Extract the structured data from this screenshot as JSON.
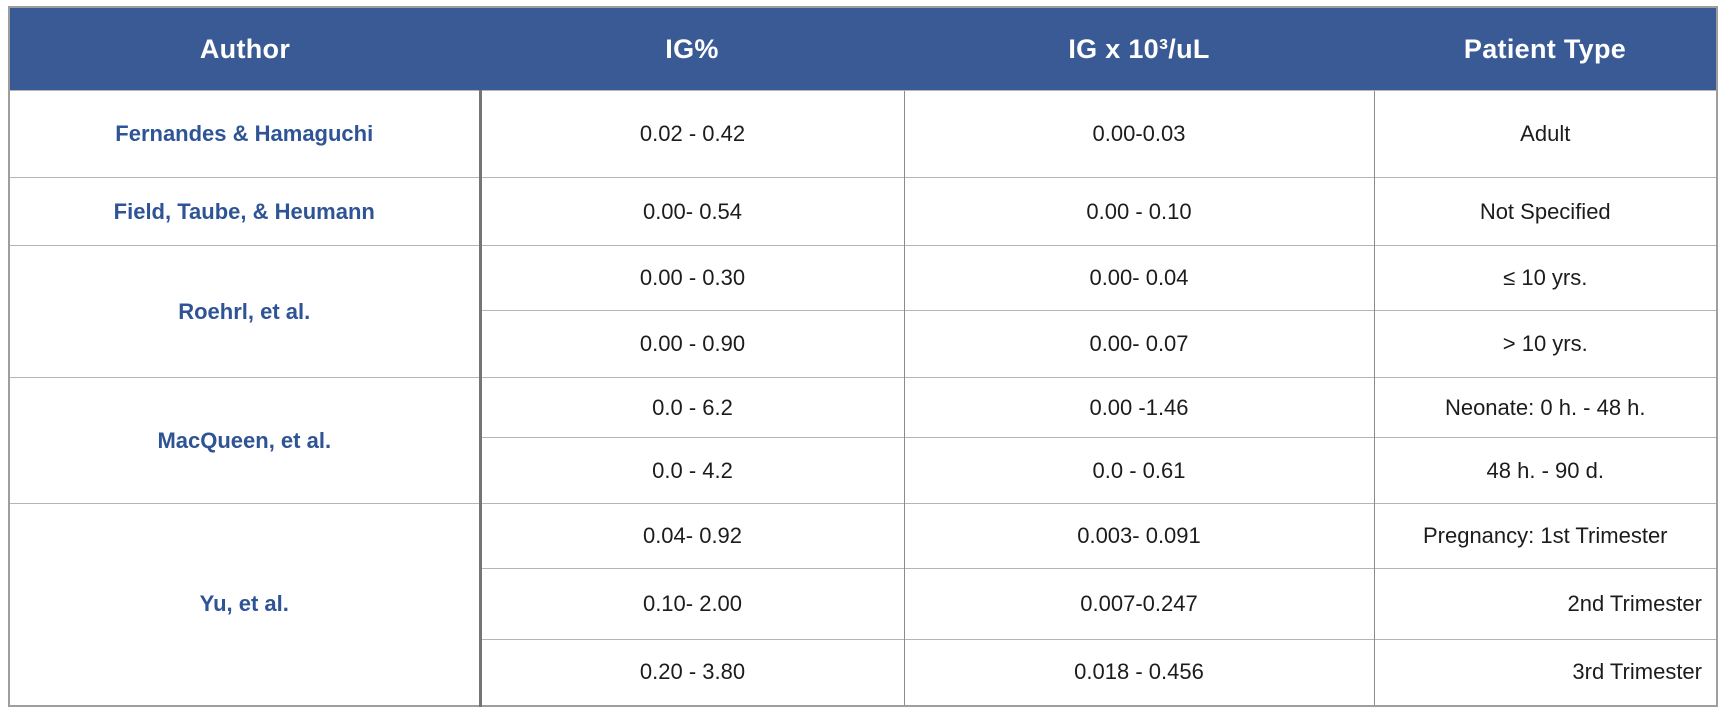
{
  "colors": {
    "header_bg": "#3A5A96",
    "header_text": "#FFFFFF",
    "author_text": "#2F5496",
    "body_text": "#1C1C1C",
    "border_outer": "#9E9E9E",
    "border_row": "#B5B5B5",
    "border_col": "#8C8C8C",
    "border_author": "#757575"
  },
  "table": {
    "columns": [
      {
        "label": "Author"
      },
      {
        "label": "IG%"
      },
      {
        "label": "IG x 10³/uL"
      },
      {
        "label": "Patient Type"
      }
    ],
    "groups": [
      {
        "author": "Fernandes & Hamaguchi",
        "rows": [
          {
            "ig_pct": "0.02 - 0.42",
            "ig_abs": "0.00-0.03",
            "patient": "Adult"
          }
        ]
      },
      {
        "author": "Field, Taube, & Heumann",
        "rows": [
          {
            "ig_pct": "0.00- 0.54",
            "ig_abs": "0.00 - 0.10",
            "patient": "Not Specified"
          }
        ]
      },
      {
        "author": "Roehrl, et al.",
        "rows": [
          {
            "ig_pct": "0.00 - 0.30",
            "ig_abs": "0.00- 0.04",
            "patient": "≤ 10 yrs."
          },
          {
            "ig_pct": "0.00 - 0.90",
            "ig_abs": "0.00- 0.07",
            "patient": "> 10 yrs."
          }
        ]
      },
      {
        "author": "MacQueen, et al.",
        "rows": [
          {
            "ig_pct": "0.0 - 6.2",
            "ig_abs": "0.00 -1.46",
            "patient": "Neonate: 0 h. - 48 h."
          },
          {
            "ig_pct": "0.0 - 4.2",
            "ig_abs": "0.0 - 0.61",
            "patient": "48 h. - 90 d."
          }
        ]
      },
      {
        "author": "Yu, et al.",
        "rows": [
          {
            "ig_pct": "0.04- 0.92",
            "ig_abs": "0.003- 0.091",
            "patient": "Pregnancy: 1st Trimester"
          },
          {
            "ig_pct": "0.10- 2.00",
            "ig_abs": "0.007-0.247",
            "patient": "2nd Trimester"
          },
          {
            "ig_pct": "0.20 - 3.80",
            "ig_abs": "0.018 - 0.456",
            "patient": "3rd Trimester"
          }
        ]
      }
    ]
  }
}
